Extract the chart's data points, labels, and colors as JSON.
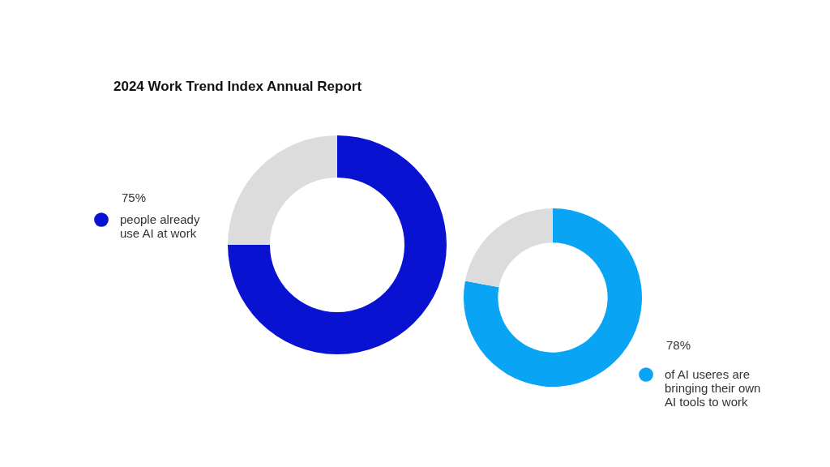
{
  "chart_data": [
    {
      "type": "donut",
      "title": "2024 Work Trend Index Annual Report",
      "categories": [
        "people already use AI at work",
        null
      ],
      "values": [
        75,
        25
      ],
      "colors": [
        "#0a12d2",
        "#dcdcdc"
      ],
      "value_labels": [
        "75%",
        null
      ],
      "legend": "left"
    },
    {
      "type": "donut",
      "categories": [
        "of AI useres are bringing their own AI tools to work",
        null
      ],
      "values": [
        78,
        22
      ],
      "colors": [
        "#0aa4f4",
        "#dcdcdc"
      ],
      "value_labels": [
        "78%",
        null
      ],
      "legend": "bottom right"
    }
  ]
}
